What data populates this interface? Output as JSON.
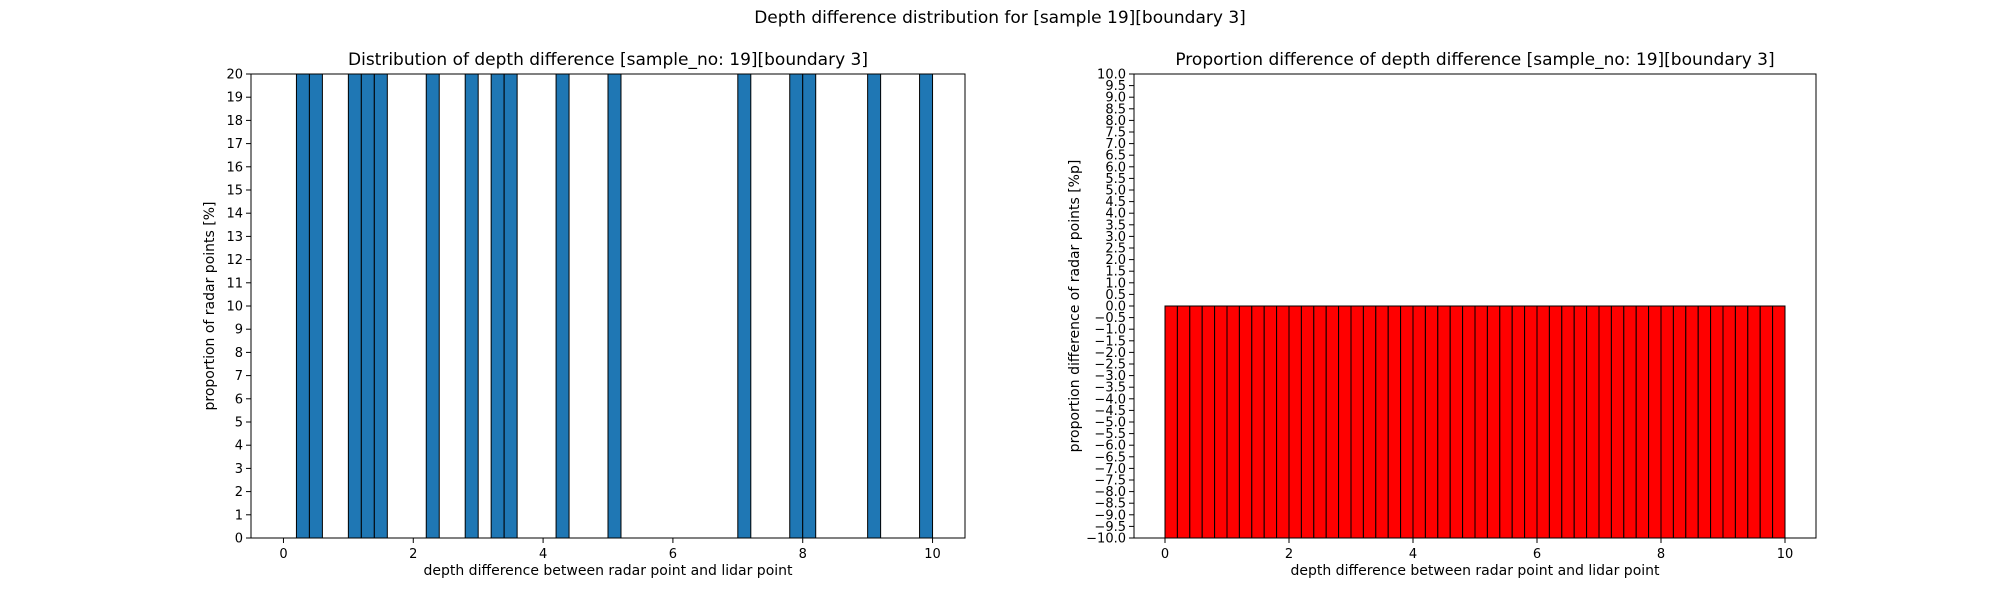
{
  "figure": {
    "suptitle": "Depth difference distribution for [sample 19][boundary 3]"
  },
  "chart_data": [
    {
      "type": "bar",
      "title": "Distribution of depth difference [sample_no: 19][boundary 3]",
      "xlabel": "depth difference between radar point and lidar point",
      "ylabel": "proportion of radar points [%]",
      "xlim": [
        -0.5,
        10.5
      ],
      "ylim": [
        0,
        20
      ],
      "xticks": [
        0,
        2,
        4,
        6,
        8,
        10
      ],
      "yticks": [
        0,
        1,
        2,
        3,
        4,
        5,
        6,
        7,
        8,
        9,
        10,
        11,
        12,
        13,
        14,
        15,
        16,
        17,
        18,
        19,
        20
      ],
      "bar_width": 0.2,
      "bar_color": "#1f77b4",
      "edge_color": "#000000",
      "x": [
        0.3,
        0.5,
        1.1,
        1.3,
        1.5,
        2.3,
        2.9,
        3.3,
        3.5,
        4.3,
        5.1,
        7.1,
        7.9,
        8.1,
        9.1,
        9.9
      ],
      "values": [
        20,
        20,
        20,
        20,
        20,
        20,
        20,
        20,
        20,
        20,
        20,
        20,
        20,
        20,
        20,
        20
      ]
    },
    {
      "type": "bar",
      "title": "Proportion difference of depth difference [sample_no: 19][boundary 3]",
      "xlabel": "depth difference between radar point and lidar point",
      "ylabel": "proportion difference of radar points [%p]",
      "xlim": [
        -0.5,
        10.5
      ],
      "ylim": [
        -10,
        10
      ],
      "xticks": [
        0,
        2,
        4,
        6,
        8,
        10
      ],
      "ytick_step": 0.5,
      "bar_width": 0.2,
      "bar_color": "#ff0000",
      "edge_color": "#000000",
      "x_start": 0.1,
      "x_step": 0.2,
      "count": 50,
      "value": -10
    }
  ]
}
